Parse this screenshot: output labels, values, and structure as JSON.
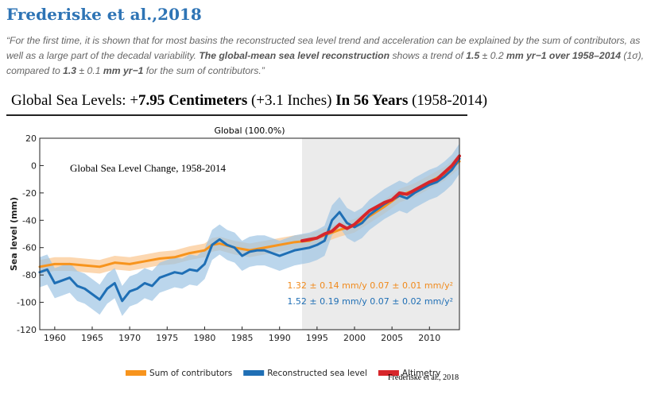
{
  "heading": "Frederiske et al.,2018",
  "quote": {
    "p1": "“For the first time, it is shown that for most basins the reconstructed sea level trend and acceleration can be explained by the sum of contributors, as well as a large part of the decadal variability. ",
    "b1": "The global-mean sea level reconstruction",
    "p2": " shows a trend of ",
    "b2": "1.5",
    "p3": " ± 0.2 ",
    "b3": "mm yr−1 over 1958–2014",
    "p4": " (1σ), compared to ",
    "b4": "1.3",
    "p5": " ± 0.1 ",
    "b5": "mm yr−1",
    "p6": " for the sum of contributors.”"
  },
  "banner": {
    "part1": "Global Sea Levels: +",
    "amount": "7.95 Centimeters",
    "part2": " (+3.1 Inches) ",
    "part3": "In 56 Years",
    "part4": " (1958-2014)"
  },
  "chart_data": {
    "type": "line",
    "title": "Global (100.0%)",
    "annotation": "Global Sea Level Change, 1958-2014",
    "credit": "Frederiske et al., 2018",
    "ylabel": "Sea level (mm)",
    "xlabel": "",
    "xlim": [
      1958,
      2014
    ],
    "ylim": [
      -120,
      20
    ],
    "xticks": [
      1960,
      1965,
      1970,
      1975,
      1980,
      1985,
      1990,
      1995,
      2000,
      2005,
      2010
    ],
    "yticks": [
      20,
      0,
      -20,
      -40,
      -60,
      -80,
      -100,
      -120
    ],
    "shaded_region": [
      1993,
      2014
    ],
    "grid": false,
    "legend_position": "bottom",
    "rates": [
      {
        "text": "1.32 ± 0.14 mm/y   0.07 ± 0.01 mm/y²",
        "color": "#f08a1c"
      },
      {
        "text": "1.52 ± 0.19 mm/y   0.07 ± 0.02 mm/y²",
        "color": "#1f6fb5"
      }
    ],
    "series": [
      {
        "name": "Sum of contributors",
        "color": "#f7941d",
        "band_color": "#fbc995",
        "band": 5,
        "x": [
          1958,
          1960,
          1962,
          1964,
          1966,
          1968,
          1970,
          1972,
          1974,
          1976,
          1978,
          1980,
          1981,
          1982,
          1984,
          1986,
          1988,
          1990,
          1992,
          1994,
          1996,
          1998,
          2000,
          2002,
          2004,
          2006,
          2008,
          2010,
          2012,
          2014
        ],
        "y": [
          -74,
          -72,
          -72,
          -73,
          -74,
          -71,
          -72,
          -70,
          -68,
          -67,
          -64,
          -62,
          -58,
          -57,
          -60,
          -62,
          -60,
          -58,
          -56,
          -55,
          -51,
          -47,
          -44,
          -37,
          -30,
          -22,
          -18,
          -12,
          -6,
          3
        ]
      },
      {
        "name": "Reconstructed sea level",
        "color": "#1f6fb5",
        "band_color": "#9ec4e4",
        "band": 11,
        "x": [
          1958,
          1959,
          1960,
          1961,
          1962,
          1963,
          1964,
          1965,
          1966,
          1967,
          1968,
          1969,
          1970,
          1971,
          1972,
          1973,
          1974,
          1975,
          1976,
          1977,
          1978,
          1979,
          1980,
          1981,
          1982,
          1983,
          1984,
          1985,
          1986,
          1987,
          1988,
          1989,
          1990,
          1991,
          1992,
          1993,
          1994,
          1995,
          1996,
          1997,
          1998,
          1999,
          2000,
          2001,
          2002,
          2003,
          2004,
          2005,
          2006,
          2007,
          2008,
          2009,
          2010,
          2011,
          2012,
          2013,
          2014
        ],
        "y": [
          -78,
          -76,
          -86,
          -84,
          -82,
          -88,
          -90,
          -94,
          -98,
          -90,
          -86,
          -99,
          -92,
          -90,
          -86,
          -88,
          -82,
          -80,
          -78,
          -79,
          -76,
          -77,
          -72,
          -58,
          -54,
          -58,
          -60,
          -66,
          -63,
          -62,
          -62,
          -64,
          -66,
          -64,
          -62,
          -61,
          -60,
          -58,
          -55,
          -40,
          -34,
          -42,
          -45,
          -42,
          -36,
          -32,
          -28,
          -25,
          -22,
          -24,
          -20,
          -17,
          -14,
          -12,
          -8,
          -3,
          5
        ]
      },
      {
        "name": "Altimetry",
        "color": "#d7262b",
        "x": [
          1993,
          1994,
          1995,
          1996,
          1997,
          1998,
          1999,
          2000,
          2001,
          2002,
          2003,
          2004,
          2005,
          2006,
          2007,
          2008,
          2009,
          2010,
          2011,
          2012,
          2013,
          2014
        ],
        "y": [
          -55,
          -54,
          -53,
          -50,
          -48,
          -43,
          -46,
          -43,
          -38,
          -33,
          -30,
          -27,
          -25,
          -20,
          -21,
          -18,
          -15,
          -12,
          -10,
          -5,
          0,
          7
        ]
      }
    ]
  }
}
